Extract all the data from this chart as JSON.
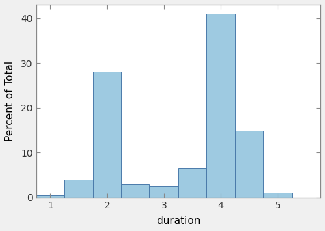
{
  "bin_edges": [
    0.75,
    1.25,
    1.75,
    2.25,
    2.75,
    3.25,
    3.75,
    4.25,
    4.75,
    5.25
  ],
  "bar_heights": [
    0.4,
    4.0,
    28.0,
    3.0,
    2.5,
    6.5,
    41.0,
    15.0,
    1.0
  ],
  "bar_color": "#9ECAE1",
  "bar_edgecolor": "#4a7aaa",
  "xlabel": "duration",
  "ylabel": "Percent of Total",
  "xlim": [
    0.75,
    5.75
  ],
  "ylim": [
    0,
    43
  ],
  "xticks": [
    1,
    2,
    3,
    4,
    5
  ],
  "yticks": [
    0,
    10,
    20,
    30,
    40
  ],
  "figure_background": "#f0f0f0",
  "axes_background": "#ffffff",
  "xlabel_fontsize": 11,
  "ylabel_fontsize": 11,
  "tick_fontsize": 10,
  "spine_color": "#888888",
  "tick_color": "#888888"
}
